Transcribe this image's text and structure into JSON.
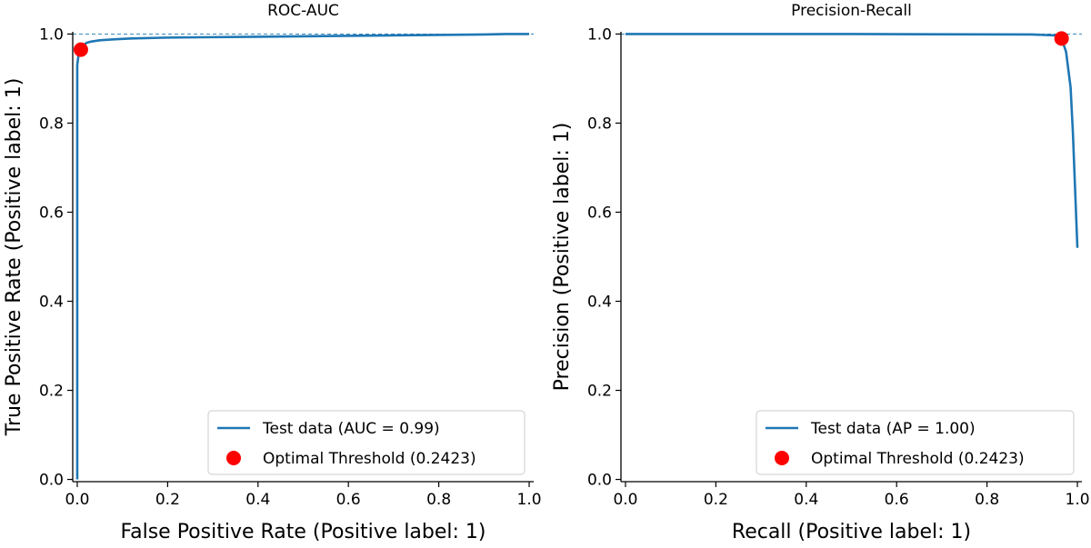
{
  "chart_data": [
    {
      "type": "line",
      "title": "ROC-AUC",
      "xlabel": "False Positive Rate (Positive label: 1)",
      "ylabel": "True Positive Rate (Positive label: 1)",
      "xlim": [
        -0.01,
        1.01
      ],
      "ylim": [
        -0.005,
        1.005
      ],
      "xticks": [
        0.0,
        0.2,
        0.4,
        0.6,
        0.8,
        1.0
      ],
      "yticks": [
        0.0,
        0.2,
        0.4,
        0.6,
        0.8,
        1.0
      ],
      "xtick_labels": [
        "0.0",
        "0.2",
        "0.4",
        "0.6",
        "0.8",
        "1.0"
      ],
      "ytick_labels": [
        "0.0",
        "0.2",
        "0.4",
        "0.6",
        "0.8",
        "1.0"
      ],
      "reference_line_y": 1.0,
      "legend_position": "lower-right",
      "series": [
        {
          "name": "Test data (AUC = 0.99)",
          "color": "#1f77b4",
          "x": [
            0.0,
            0.0,
            0.003,
            0.006,
            0.01,
            0.015,
            0.02,
            0.03,
            0.05,
            0.08,
            0.12,
            0.2,
            0.3,
            0.4,
            0.5,
            0.6,
            0.7,
            0.8,
            0.9,
            0.95,
            1.0
          ],
          "y": [
            0.0,
            0.93,
            0.955,
            0.965,
            0.97,
            0.975,
            0.98,
            0.983,
            0.986,
            0.988,
            0.99,
            0.992,
            0.993,
            0.994,
            0.995,
            0.996,
            0.997,
            0.998,
            0.999,
            1.0,
            1.0
          ]
        }
      ],
      "point": {
        "name": "Optimal Threshold (0.2423)",
        "color": "#ff0000",
        "x": 0.008,
        "y": 0.965
      }
    },
    {
      "type": "line",
      "title": "Precision-Recall",
      "xlabel": "Recall (Positive label: 1)",
      "ylabel": "Precision (Positive label: 1)",
      "xlim": [
        -0.01,
        1.01
      ],
      "ylim": [
        -0.005,
        1.005
      ],
      "xticks": [
        0.0,
        0.2,
        0.4,
        0.6,
        0.8,
        1.0
      ],
      "yticks": [
        0.0,
        0.2,
        0.4,
        0.6,
        0.8,
        1.0
      ],
      "xtick_labels": [
        "0.0",
        "0.2",
        "0.4",
        "0.6",
        "0.8",
        "1.0"
      ],
      "ytick_labels": [
        "0.0",
        "0.2",
        "0.4",
        "0.6",
        "0.8",
        "1.0"
      ],
      "reference_line_y": 1.0,
      "legend_position": "lower-right",
      "series": [
        {
          "name": "Test data (AP = 1.00)",
          "color": "#1f77b4",
          "x": [
            0.0,
            0.5,
            0.9,
            0.95,
            0.965,
            0.975,
            0.985,
            0.99,
            0.995,
            1.0
          ],
          "y": [
            1.0,
            1.0,
            0.999,
            0.997,
            0.99,
            0.96,
            0.88,
            0.78,
            0.65,
            0.52
          ]
        }
      ],
      "point": {
        "name": "Optimal Threshold (0.2423)",
        "color": "#ff0000",
        "x": 0.965,
        "y": 0.99
      }
    }
  ]
}
